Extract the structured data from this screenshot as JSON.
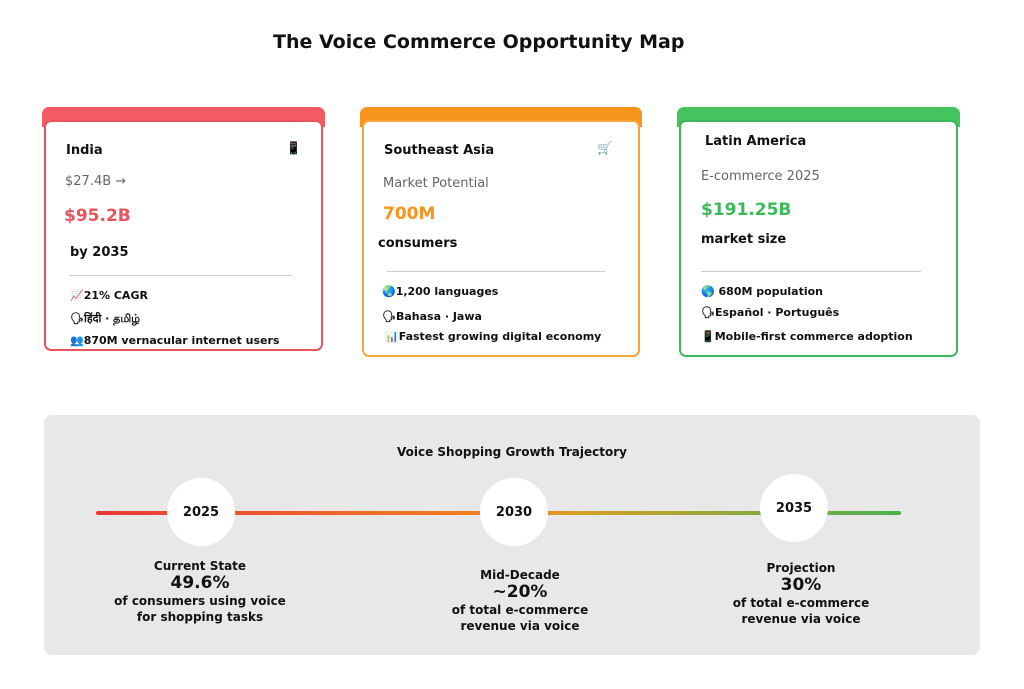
{
  "title": "The Voice Commerce Opportunity Map",
  "cards": [
    {
      "name": "India",
      "icon": "📱",
      "icon_name": "mobile-phone-icon",
      "sub": "$27.4B →",
      "big": "$95.2B",
      "unit": "by 2035",
      "accent": "#e8545e",
      "facts": [
        "📈21% CAGR",
        "🗣हिंदी · தமிழ்",
        "👥870M vernacular internet users"
      ]
    },
    {
      "name": "Southeast Asia",
      "icon": "🛒",
      "icon_name": "shopping-cart-icon",
      "sub": "Market Potential",
      "big": "700M",
      "unit": "consumers",
      "accent": "#f7941d",
      "facts": [
        "🌏1,200 languages",
        "🗣Bahasa · Jawa",
        "📊Fastest growing digital economy"
      ]
    },
    {
      "name": "Latin America",
      "icon": "",
      "icon_name": "",
      "sub": "E-commerce 2025",
      "big": "$191.25B",
      "unit": "market size",
      "accent": "#3cb95a",
      "facts": [
        "🌎  680M population",
        "🗣Español · Português",
        "📱Mobile-first commerce adoption"
      ]
    }
  ],
  "timeline": {
    "title": "Voice Shopping Growth Trajectory",
    "milestones": [
      {
        "year": "2025",
        "heading": "Current State",
        "value": "49.6%",
        "desc1": "of consumers using voice",
        "desc2": "for shopping tasks"
      },
      {
        "year": "2030",
        "heading": "Mid-Decade",
        "value": "~20%",
        "desc1": "of total e-commerce",
        "desc2": "revenue via voice"
      },
      {
        "year": "2035",
        "heading": "Projection",
        "value": "30%",
        "desc1": "of total e-commerce",
        "desc2": "revenue via voice"
      }
    ]
  }
}
